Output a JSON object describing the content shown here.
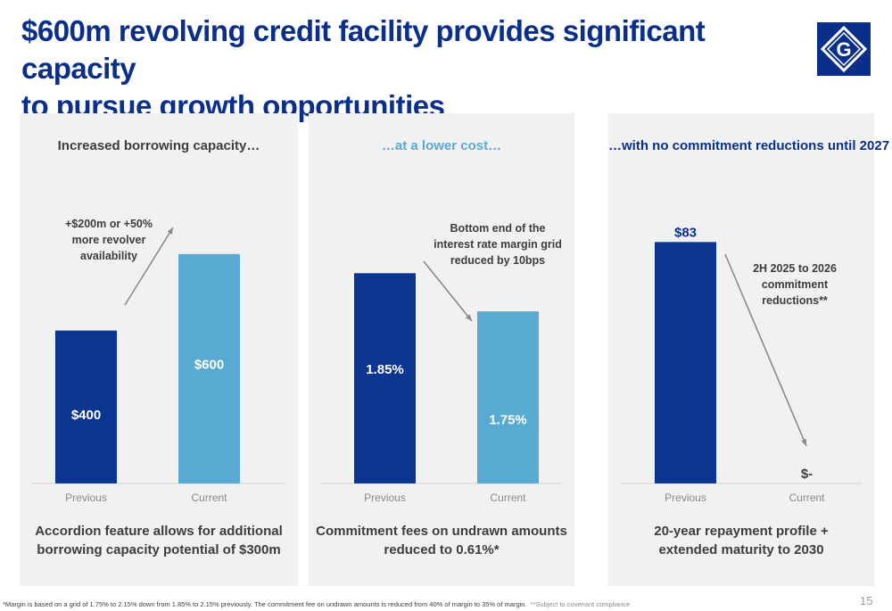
{
  "title": {
    "line1": "$600m revolving credit facility provides significant capacity",
    "line2": "to pursue growth opportunities"
  },
  "logo": {
    "letter": "G",
    "icon": "diamond-g-logo-icon",
    "color": "#0a2f8a"
  },
  "colors": {
    "dark_bar": "#0a3591",
    "light_bar": "#58aad3",
    "heading_blue": "#58aad3",
    "heading_navy": "#0a2f8a"
  },
  "chart_data": [
    {
      "type": "bar",
      "title": "Increased borrowing capacity…",
      "categories": [
        "Previous",
        "Current"
      ],
      "values": [
        400,
        600
      ],
      "value_labels": [
        "$400",
        "$600"
      ],
      "ylim": [
        0,
        700
      ],
      "annotation": {
        "lines": [
          "+$200m or +50%",
          "more revolver",
          "availability"
        ]
      },
      "caption": {
        "lines": [
          "Accordion feature allows for additional",
          "borrowing capacity potential of $300m"
        ]
      }
    },
    {
      "type": "bar",
      "title": "…at a lower cost…",
      "categories": [
        "Previous",
        "Current"
      ],
      "values": [
        1.85,
        1.75
      ],
      "value_labels": [
        "1.85%",
        "1.75%"
      ],
      "ylim": [
        1.3,
        2.0
      ],
      "annotation": {
        "lines": [
          "Bottom end of the",
          "interest rate margin grid",
          "reduced by 10bps"
        ]
      },
      "caption": {
        "lines": [
          "Commitment fees on undrawn amounts",
          "reduced to 0.61%*"
        ]
      }
    },
    {
      "type": "bar",
      "title": "…with no commitment reductions until 2027",
      "categories": [
        "Previous",
        "Current"
      ],
      "values": [
        83,
        0
      ],
      "value_labels": [
        "$83",
        "$-"
      ],
      "ylim": [
        0,
        92
      ],
      "annotation": {
        "lines": [
          "2H 2025 to 2026",
          "commitment",
          "reductions**"
        ]
      },
      "caption": {
        "lines": [
          "20-year repayment profile +",
          "extended maturity to 2030"
        ]
      }
    }
  ],
  "footnote": {
    "main": "*Margin is based on a grid of 1.75% to 2.15% down from 1.85% to 2.15% previously. The commitment fee on undrawn amounts is reduced from 40% of margin to 35% of margin.",
    "sub": "**Subject to covenant compliance"
  },
  "page_number": "15"
}
